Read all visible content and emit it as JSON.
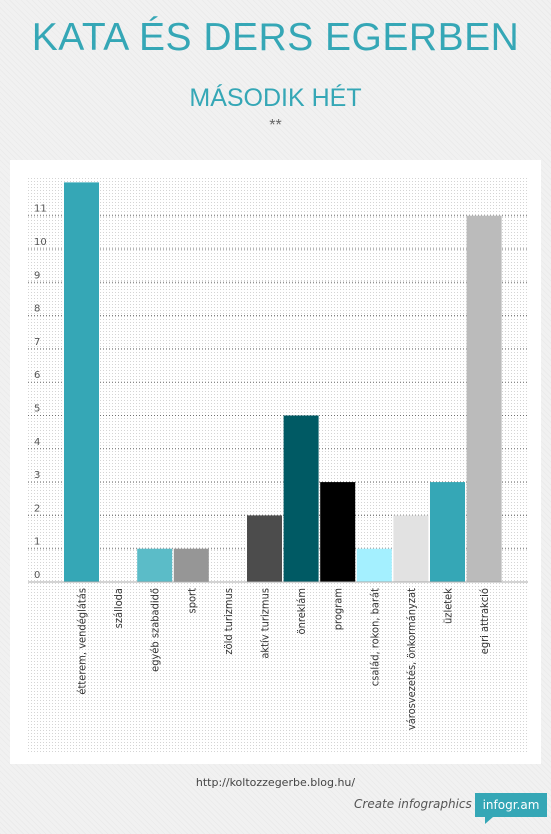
{
  "header": {
    "title": "KATA ÉS DERS EGERBEN",
    "subtitle": "MÁSODIK HÉT",
    "stars": "**"
  },
  "chart_data": {
    "type": "bar",
    "ylim": [
      0,
      12
    ],
    "y_ticks": [
      0,
      1,
      2,
      3,
      4,
      5,
      6,
      7,
      8,
      9,
      10,
      11
    ],
    "grid": true,
    "categories": [
      "étterem, vendéglátás",
      "szálloda",
      "egyéb szabadidő",
      "sport",
      "zöld turizmus",
      "aktív turizmus",
      "önreklám",
      "program",
      "család, rokon, barát",
      "városvezetés, önkormányzat",
      "üzletek",
      "egri attrakció"
    ],
    "values": [
      12,
      0,
      1,
      1,
      0,
      2,
      5,
      3,
      1,
      2,
      3,
      11
    ],
    "colors": [
      "#35a7b6",
      "#35a7b6",
      "#5bbcc8",
      "#969696",
      "#35a7b6",
      "#4c4c4c",
      "#005a64",
      "#000000",
      "#a4f0ff",
      "#e2e2e2",
      "#35a7b6",
      "#bbbbbb"
    ]
  },
  "footer": {
    "url": "http://koltozzegerbe.blog.hu/",
    "create": "Create infographics",
    "brand": "infogr.am"
  }
}
